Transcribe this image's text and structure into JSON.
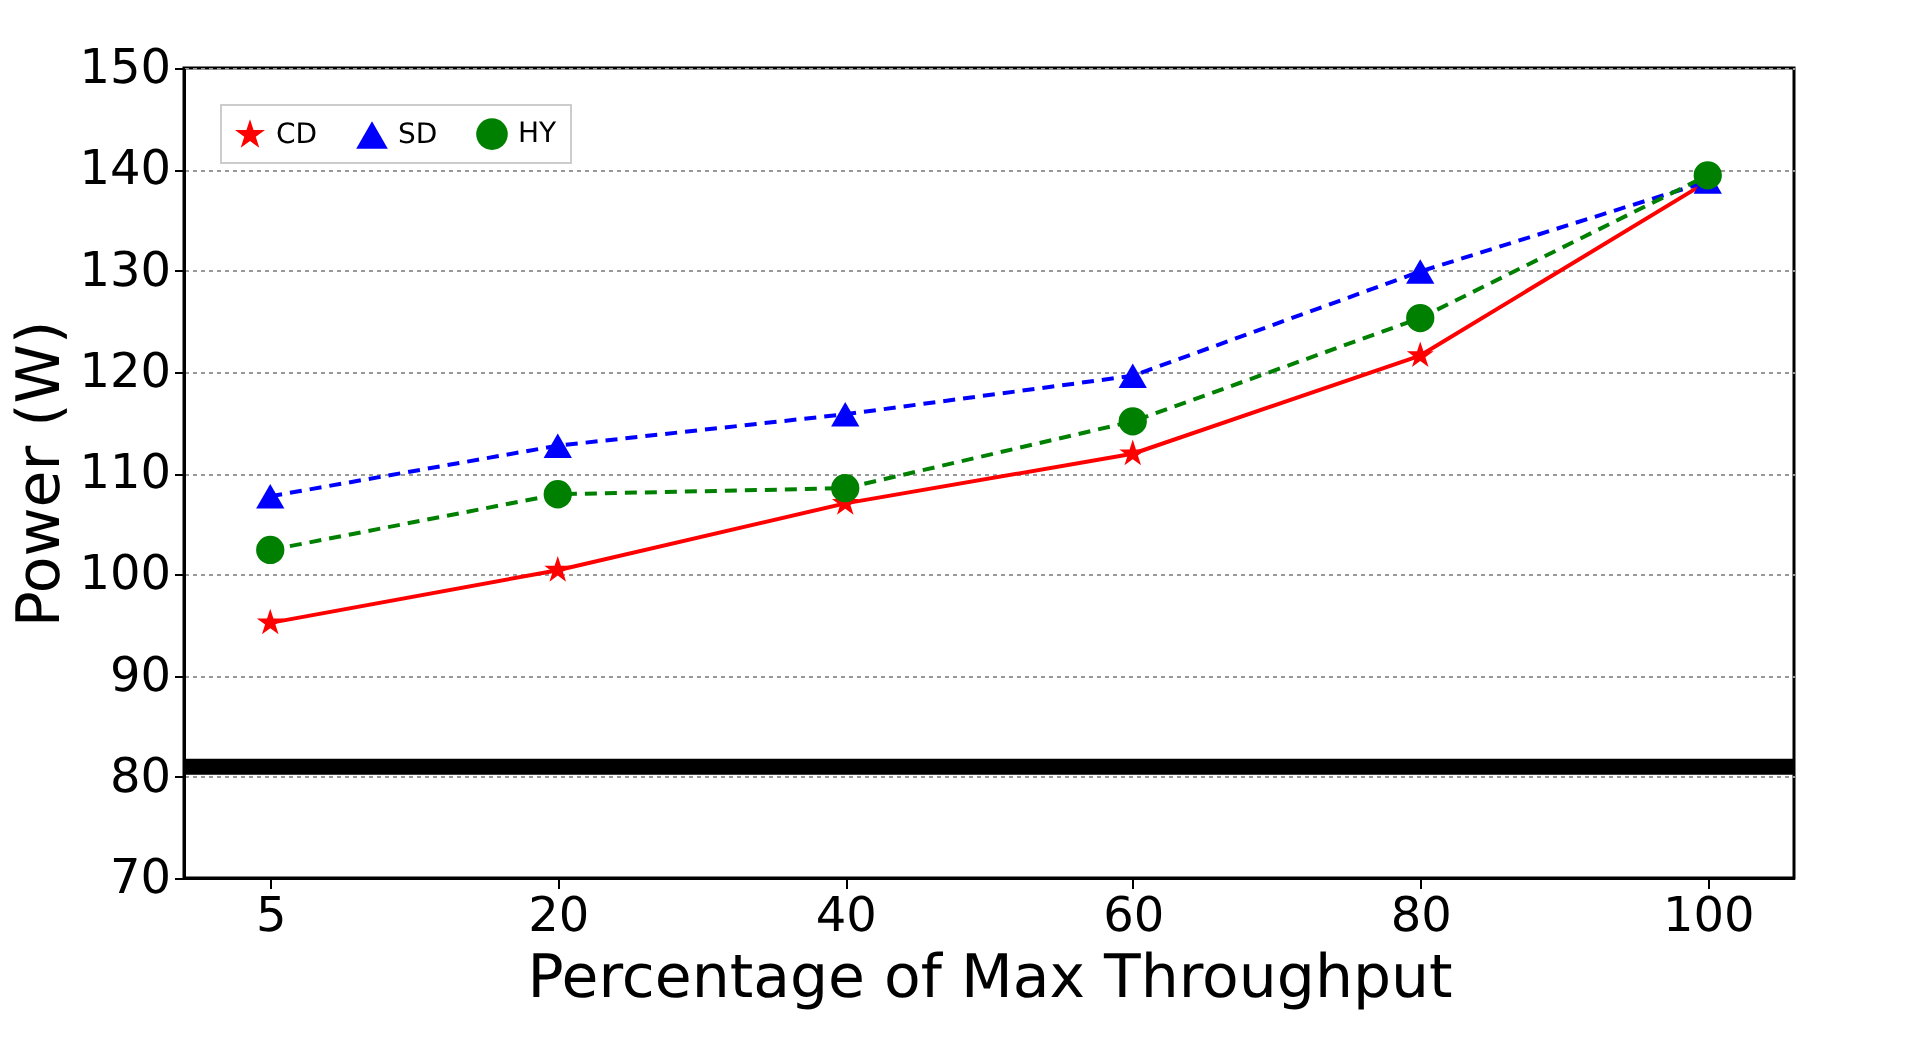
{
  "chart_data": {
    "type": "line",
    "xlabel": "Percentage of Max Throughput",
    "ylabel": "Power (W)",
    "categories": [
      "5",
      "20",
      "40",
      "60",
      "80",
      "100"
    ],
    "series": [
      {
        "name": "CD",
        "color": "#ff0000",
        "marker": "star",
        "line_style": "solid",
        "values": [
          95.2,
          100.4,
          107.0,
          111.9,
          121.6,
          138.8
        ]
      },
      {
        "name": "SD",
        "color": "#0000ff",
        "marker": "triangle",
        "line_style": "dashed",
        "values": [
          107.7,
          112.7,
          115.8,
          119.6,
          129.9,
          138.8
        ]
      },
      {
        "name": "HY",
        "color": "#008000",
        "marker": "circle",
        "line_style": "dashed",
        "values": [
          102.4,
          107.9,
          108.5,
          115.1,
          125.3,
          139.4
        ]
      }
    ],
    "ylim": [
      70,
      150
    ],
    "yticks": [
      70,
      80,
      90,
      100,
      110,
      120,
      130,
      140,
      150
    ],
    "ref_lines": [
      {
        "axis": "y",
        "value": 81,
        "label": null,
        "color": "#000000"
      }
    ],
    "grid": "y",
    "legend": "top left"
  }
}
